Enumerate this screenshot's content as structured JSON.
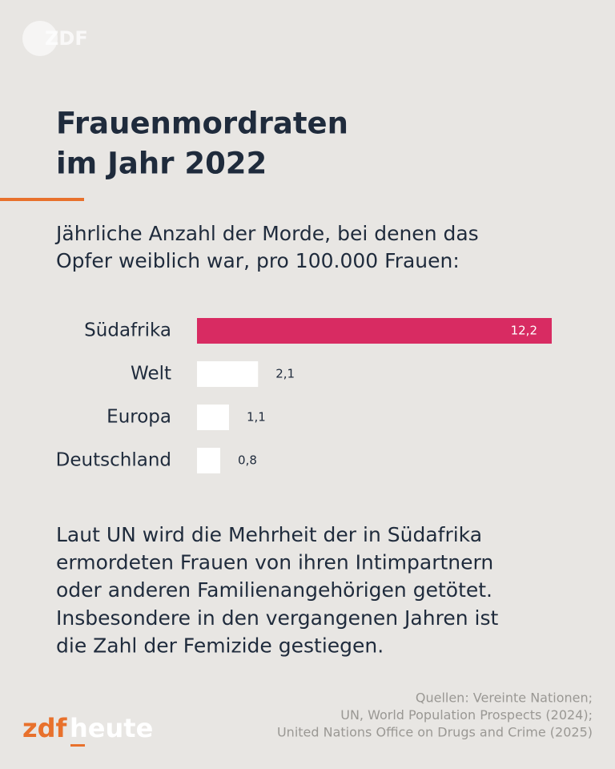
{
  "brand": {
    "top": "ZDF",
    "bottom_a": "zdf",
    "bottom_b": "heute"
  },
  "chart_data": {
    "type": "hbar",
    "title": [
      "Frauenmordraten",
      "im Jahr 2022"
    ],
    "subtitle": [
      "Jährliche Anzahl der Morde, bei denen das",
      "Opfer weiblich war, pro 100.000 Frauen:"
    ],
    "categories": [
      "Südafrika",
      "Welt",
      "Europa",
      "Deutschland"
    ],
    "values": [
      12.2,
      2.1,
      1.1,
      0.8
    ],
    "value_labels": [
      "12,2",
      "2,1",
      "1,1",
      "0,8"
    ],
    "colors": [
      "#d82b62",
      "#ffffff",
      "#ffffff",
      "#ffffff"
    ]
  },
  "body": [
    "Laut UN wird die Mehrheit der in Südafrika",
    "ermordeten Frauen von ihren Intimpartnern",
    "oder anderen Familienangehörigen getötet.",
    "Insbesondere in den vergangenen Jahren ist",
    "die Zahl der Femizide gestiegen."
  ],
  "sources": [
    "Quellen: Vereinte Nationen;",
    "UN, World Population Prospects (2024);",
    "United Nations Office on Drugs and Crime (2025)"
  ]
}
